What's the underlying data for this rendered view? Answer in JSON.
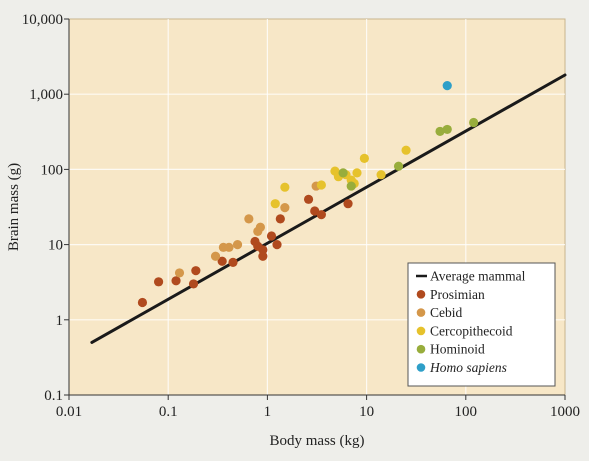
{
  "chart_data": {
    "type": "scatter",
    "xlabel": "Body mass (kg)",
    "ylabel": "Brain mass (g)",
    "x_scale": "log",
    "y_scale": "log",
    "xlim": [
      0.01,
      1000
    ],
    "ylim": [
      0.1,
      10000
    ],
    "x_ticks": [
      0.01,
      0.1,
      1,
      10,
      100,
      1000
    ],
    "x_tick_labels": [
      "0.01",
      "0.1",
      "1",
      "10",
      "100",
      "1000"
    ],
    "y_ticks": [
      0.1,
      1,
      10,
      100,
      1000,
      10000
    ],
    "y_tick_labels": [
      "0.1",
      "1",
      "10",
      "100",
      "1,000",
      "10,000"
    ],
    "legend_position": "bottom-right",
    "colors": {
      "plot_background": "#f7e7c7",
      "line": "#1a1a1a",
      "Prosimian": "#b04a1e",
      "Cebid": "#d4974a",
      "Cercopithecoid": "#e6c22c",
      "Hominoid": "#98ad3c",
      "Homo sapiens": "#2e9fc8"
    },
    "line": {
      "name": "Average mammal",
      "x": [
        0.017,
        1000
      ],
      "y": [
        0.5,
        1800
      ]
    },
    "series": [
      {
        "name": "Prosimian",
        "x": [
          0.055,
          0.08,
          0.12,
          0.18,
          0.19,
          0.35,
          0.45,
          0.75,
          0.8,
          0.9,
          0.9,
          1.1,
          1.25,
          1.35,
          2.6,
          3.0,
          3.5,
          6.5
        ],
        "y": [
          1.7,
          3.2,
          3.3,
          3.0,
          4.5,
          6.0,
          5.8,
          11,
          9.5,
          8.5,
          7.0,
          13,
          10,
          22,
          40,
          28,
          25,
          35
        ]
      },
      {
        "name": "Cebid",
        "x": [
          0.13,
          0.3,
          0.36,
          0.41,
          0.5,
          0.65,
          0.8,
          0.85,
          1.5,
          3.1
        ],
        "y": [
          4.2,
          7.0,
          9.2,
          9.2,
          10,
          22,
          15,
          17,
          31,
          60
        ]
      },
      {
        "name": "Cercopithecoid",
        "x": [
          1.2,
          1.5,
          3.5,
          4.8,
          5.2,
          6.2,
          7.0,
          7.5,
          8.0,
          9.5,
          14,
          25
        ],
        "y": [
          35,
          58,
          62,
          95,
          80,
          85,
          72,
          65,
          90,
          140,
          85,
          180
        ]
      },
      {
        "name": "Hominoid",
        "x": [
          5.8,
          7.0,
          21,
          55,
          65,
          120
        ],
        "y": [
          90,
          60,
          110,
          320,
          340,
          420
        ]
      },
      {
        "name": "Homo sapiens",
        "x": [
          65
        ],
        "y": [
          1300
        ]
      }
    ],
    "legend_entries": [
      "Average mammal",
      "Prosimian",
      "Cebid",
      "Cercopithecoid",
      "Hominoid",
      "Homo sapiens"
    ]
  }
}
